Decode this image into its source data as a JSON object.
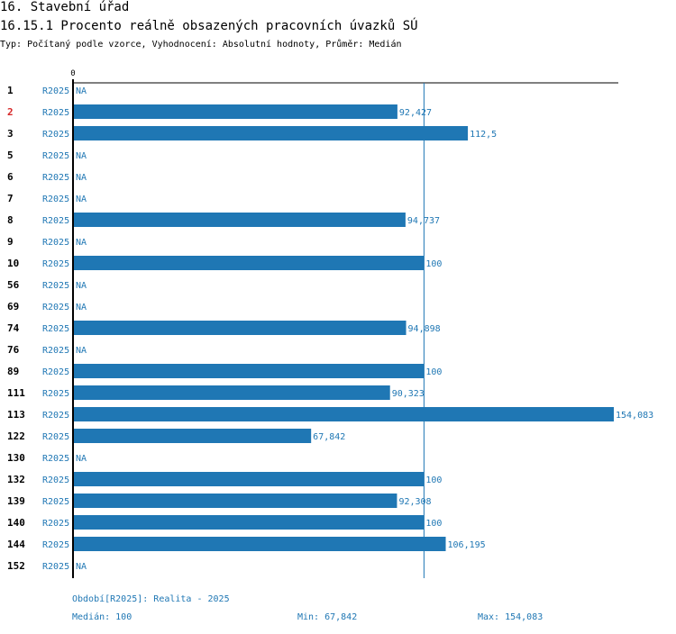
{
  "header": {
    "section_title": "16. Stavební úřad",
    "indicator_title": "16.15.1 Procento reálně obsazených pracovních úvazků SÚ",
    "subtitle": "Typ: Počítaný podle vzorce, Vyhodnocení: Absolutní hodnoty, Průměr: Medián"
  },
  "colors": {
    "bar": "#1f77b4",
    "label": "#1f77b4",
    "highlight": "#d62728",
    "text": "#000000"
  },
  "chart_data": {
    "type": "bar",
    "orientation": "horizontal",
    "title": "16.15.1 Procento reálně obsazených pracovních úvazků SÚ",
    "axis_zero_label": "0",
    "xlim": [
      0,
      154.083
    ],
    "median": 100,
    "series": [
      {
        "name": "R2025",
        "rows": [
          {
            "id": "1",
            "period": "R2025",
            "value": null,
            "label": "NA",
            "highlight": false
          },
          {
            "id": "2",
            "period": "R2025",
            "value": 92.427,
            "label": "92,427",
            "highlight": true
          },
          {
            "id": "3",
            "period": "R2025",
            "value": 112.5,
            "label": "112,5",
            "highlight": false
          },
          {
            "id": "5",
            "period": "R2025",
            "value": null,
            "label": "NA",
            "highlight": false
          },
          {
            "id": "6",
            "period": "R2025",
            "value": null,
            "label": "NA",
            "highlight": false
          },
          {
            "id": "7",
            "period": "R2025",
            "value": null,
            "label": "NA",
            "highlight": false
          },
          {
            "id": "8",
            "period": "R2025",
            "value": 94.737,
            "label": "94,737",
            "highlight": false
          },
          {
            "id": "9",
            "period": "R2025",
            "value": null,
            "label": "NA",
            "highlight": false
          },
          {
            "id": "10",
            "period": "R2025",
            "value": 100,
            "label": "100",
            "highlight": false
          },
          {
            "id": "56",
            "period": "R2025",
            "value": null,
            "label": "NA",
            "highlight": false
          },
          {
            "id": "69",
            "period": "R2025",
            "value": null,
            "label": "NA",
            "highlight": false
          },
          {
            "id": "74",
            "period": "R2025",
            "value": 94.898,
            "label": "94,898",
            "highlight": false
          },
          {
            "id": "76",
            "period": "R2025",
            "value": null,
            "label": "NA",
            "highlight": false
          },
          {
            "id": "89",
            "period": "R2025",
            "value": 100,
            "label": "100",
            "highlight": false
          },
          {
            "id": "111",
            "period": "R2025",
            "value": 90.323,
            "label": "90,323",
            "highlight": false
          },
          {
            "id": "113",
            "period": "R2025",
            "value": 154.083,
            "label": "154,083",
            "highlight": false
          },
          {
            "id": "122",
            "period": "R2025",
            "value": 67.842,
            "label": "67,842",
            "highlight": false
          },
          {
            "id": "130",
            "period": "R2025",
            "value": null,
            "label": "NA",
            "highlight": false
          },
          {
            "id": "132",
            "period": "R2025",
            "value": 100,
            "label": "100",
            "highlight": false
          },
          {
            "id": "139",
            "period": "R2025",
            "value": 92.308,
            "label": "92,308",
            "highlight": false
          },
          {
            "id": "140",
            "period": "R2025",
            "value": 100,
            "label": "100",
            "highlight": false
          },
          {
            "id": "144",
            "period": "R2025",
            "value": 106.195,
            "label": "106,195",
            "highlight": false
          },
          {
            "id": "152",
            "period": "R2025",
            "value": null,
            "label": "NA",
            "highlight": false
          }
        ]
      }
    ]
  },
  "footer": {
    "period_note": "Období[R2025]: Realita - 2025",
    "median_text": "Medián: 100",
    "min_text": "Min: 67,842",
    "max_text": "Max: 154,083"
  }
}
